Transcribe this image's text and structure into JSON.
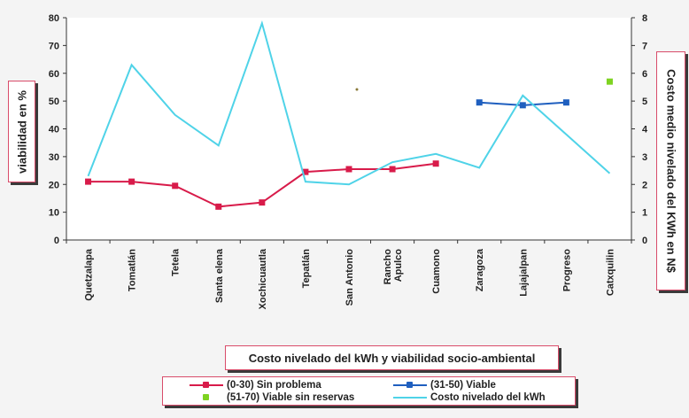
{
  "chart_data": {
    "type": "line",
    "title": "Costo nivelado del kWh y viabilidad socio-ambiental",
    "ylabel": "viabilidad en %",
    "y2label": "Costo medio nivelado del KWh en N$",
    "ylim": [
      0,
      80
    ],
    "y2lim": [
      0,
      8
    ],
    "yticks": [
      "0",
      "10",
      "20",
      "30",
      "40",
      "50",
      "60",
      "70",
      "80"
    ],
    "y2ticks": [
      "0",
      "1",
      "2",
      "3",
      "4",
      "5",
      "6",
      "7",
      "8"
    ],
    "categories": [
      "Quetzalapa",
      "Tomatlán",
      "Tetela",
      "Santa elena",
      "Xochicuautla",
      "Tepatlán",
      "San Antonio",
      "Rancho Apulco",
      "Cuamono",
      "Zaragoza",
      "Lajajalpan",
      "Progreso",
      "Catxquilin"
    ],
    "category_lines": [
      [
        "Quetzalapa"
      ],
      [
        "Tomatlán"
      ],
      [
        "Tetela"
      ],
      [
        "Santa elena"
      ],
      [
        "Xochicuautla"
      ],
      [
        "Tepatlán"
      ],
      [
        "San Antonio"
      ],
      [
        "Rancho",
        "Apulco"
      ],
      [
        "Cuamono"
      ],
      [
        "Zaragoza"
      ],
      [
        "Lajajalpan"
      ],
      [
        "Progreso"
      ],
      [
        "Catxquilin"
      ]
    ],
    "legend_position": "bottom",
    "grid": false,
    "series": [
      {
        "name": "(0-30) Sin problema",
        "axis": "left",
        "color": "#d81b4a",
        "marker": "square",
        "values": [
          21,
          21,
          19.5,
          12,
          13.5,
          24.5,
          25.5,
          25.5,
          27.5,
          null,
          null,
          null,
          null
        ]
      },
      {
        "name": "(31-50) Viable",
        "axis": "left",
        "color": "#1f5fbf",
        "marker": "square",
        "values": [
          null,
          null,
          null,
          null,
          null,
          null,
          null,
          null,
          null,
          49.5,
          48.5,
          49.5,
          null
        ]
      },
      {
        "name": "(51-70) Viable sin reservas",
        "axis": "left",
        "color": "#7ed321",
        "marker": "square",
        "values": [
          null,
          null,
          null,
          null,
          null,
          null,
          null,
          null,
          null,
          null,
          null,
          null,
          57
        ]
      },
      {
        "name": "Costo nivelado del kWh",
        "axis": "right",
        "color": "#4fd3e8",
        "marker": "none",
        "values": [
          2.3,
          6.3,
          4.5,
          3.4,
          7.8,
          2.1,
          2.0,
          2.8,
          3.1,
          2.6,
          5.2,
          3.8,
          2.4
        ]
      }
    ]
  }
}
